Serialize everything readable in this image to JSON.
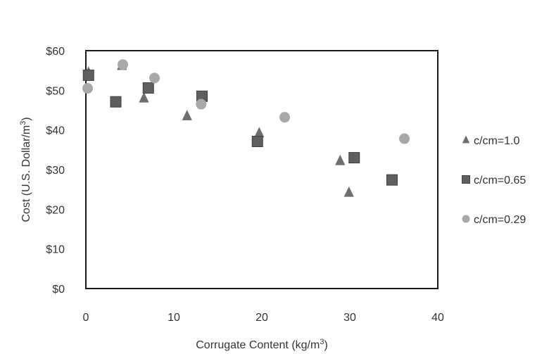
{
  "chart_data": {
    "type": "scatter",
    "title": "",
    "xlabel": "Corrugate Content (kg/m",
    "xlabel_sup": "3",
    "xlabel_suffix": ")",
    "ylabel": "Cost (U.S. Dollar/m",
    "ylabel_sup": "3",
    "ylabel_suffix": ")",
    "xlim": [
      0,
      40
    ],
    "ylim": [
      0,
      60
    ],
    "x_ticks": [
      0,
      10,
      20,
      30,
      40
    ],
    "y_ticks": [
      0,
      10,
      20,
      30,
      40,
      50,
      60
    ],
    "x_tick_labels": [
      "0",
      "10",
      "20",
      "30",
      "40"
    ],
    "y_tick_labels": [
      "$0",
      "$10",
      "$20",
      "$30",
      "$40",
      "$50",
      "$60"
    ],
    "grid": false,
    "legend_position": "right",
    "series": [
      {
        "name": "c/cm=1.0",
        "marker": "triangle",
        "color": "#6e6e6e",
        "points": [
          {
            "x": 0.3,
            "y": 54.5
          },
          {
            "x": 4.1,
            "y": 56.2
          },
          {
            "x": 6.6,
            "y": 48.0
          },
          {
            "x": 11.5,
            "y": 43.5
          },
          {
            "x": 19.7,
            "y": 39.2
          },
          {
            "x": 28.9,
            "y": 32.2
          },
          {
            "x": 29.9,
            "y": 24.2
          }
        ]
      },
      {
        "name": "c/cm=0.65",
        "marker": "square",
        "color": "#5f5f5f",
        "points": [
          {
            "x": 0.3,
            "y": 53.8
          },
          {
            "x": 3.4,
            "y": 47.1
          },
          {
            "x": 7.1,
            "y": 50.6
          },
          {
            "x": 13.2,
            "y": 48.5
          },
          {
            "x": 19.5,
            "y": 37.1
          },
          {
            "x": 30.5,
            "y": 33.0
          },
          {
            "x": 34.8,
            "y": 27.4
          }
        ]
      },
      {
        "name": "c/cm=0.29",
        "marker": "circle",
        "color": "#a8a8a8",
        "points": [
          {
            "x": 0.2,
            "y": 50.5
          },
          {
            "x": 4.2,
            "y": 56.5
          },
          {
            "x": 7.8,
            "y": 53.1
          },
          {
            "x": 13.1,
            "y": 46.5
          },
          {
            "x": 22.6,
            "y": 43.2
          },
          {
            "x": 36.2,
            "y": 37.8
          }
        ]
      }
    ]
  }
}
